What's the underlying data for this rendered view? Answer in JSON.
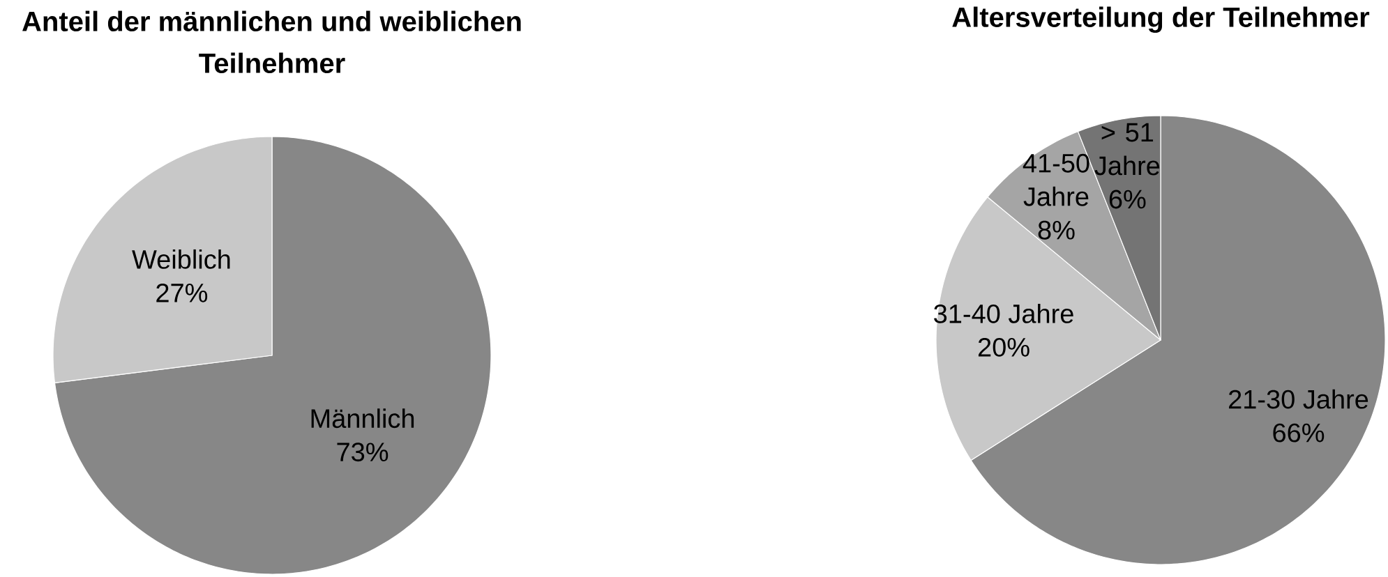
{
  "chart_data": [
    {
      "type": "pie",
      "title": "Anteil der männlichen und weiblichen Teilnehmer",
      "categories": [
        "Männlich",
        "Weiblich"
      ],
      "values": [
        73,
        27
      ],
      "value_labels": [
        "73%",
        "27%"
      ],
      "colors": [
        "#878787",
        "#c8c8c8"
      ]
    },
    {
      "type": "pie",
      "title": "Altersverteilung der Teilnehmer",
      "categories": [
        "21-30 Jahre",
        "31-40 Jahre",
        "41-50 Jahre",
        "> 51 Jahre"
      ],
      "values": [
        66,
        20,
        8,
        6
      ],
      "value_labels": [
        "66%",
        "20%",
        "8%",
        "6%"
      ],
      "colors": [
        "#878787",
        "#c8c8c8",
        "#a5a5a5",
        "#747474"
      ]
    }
  ]
}
